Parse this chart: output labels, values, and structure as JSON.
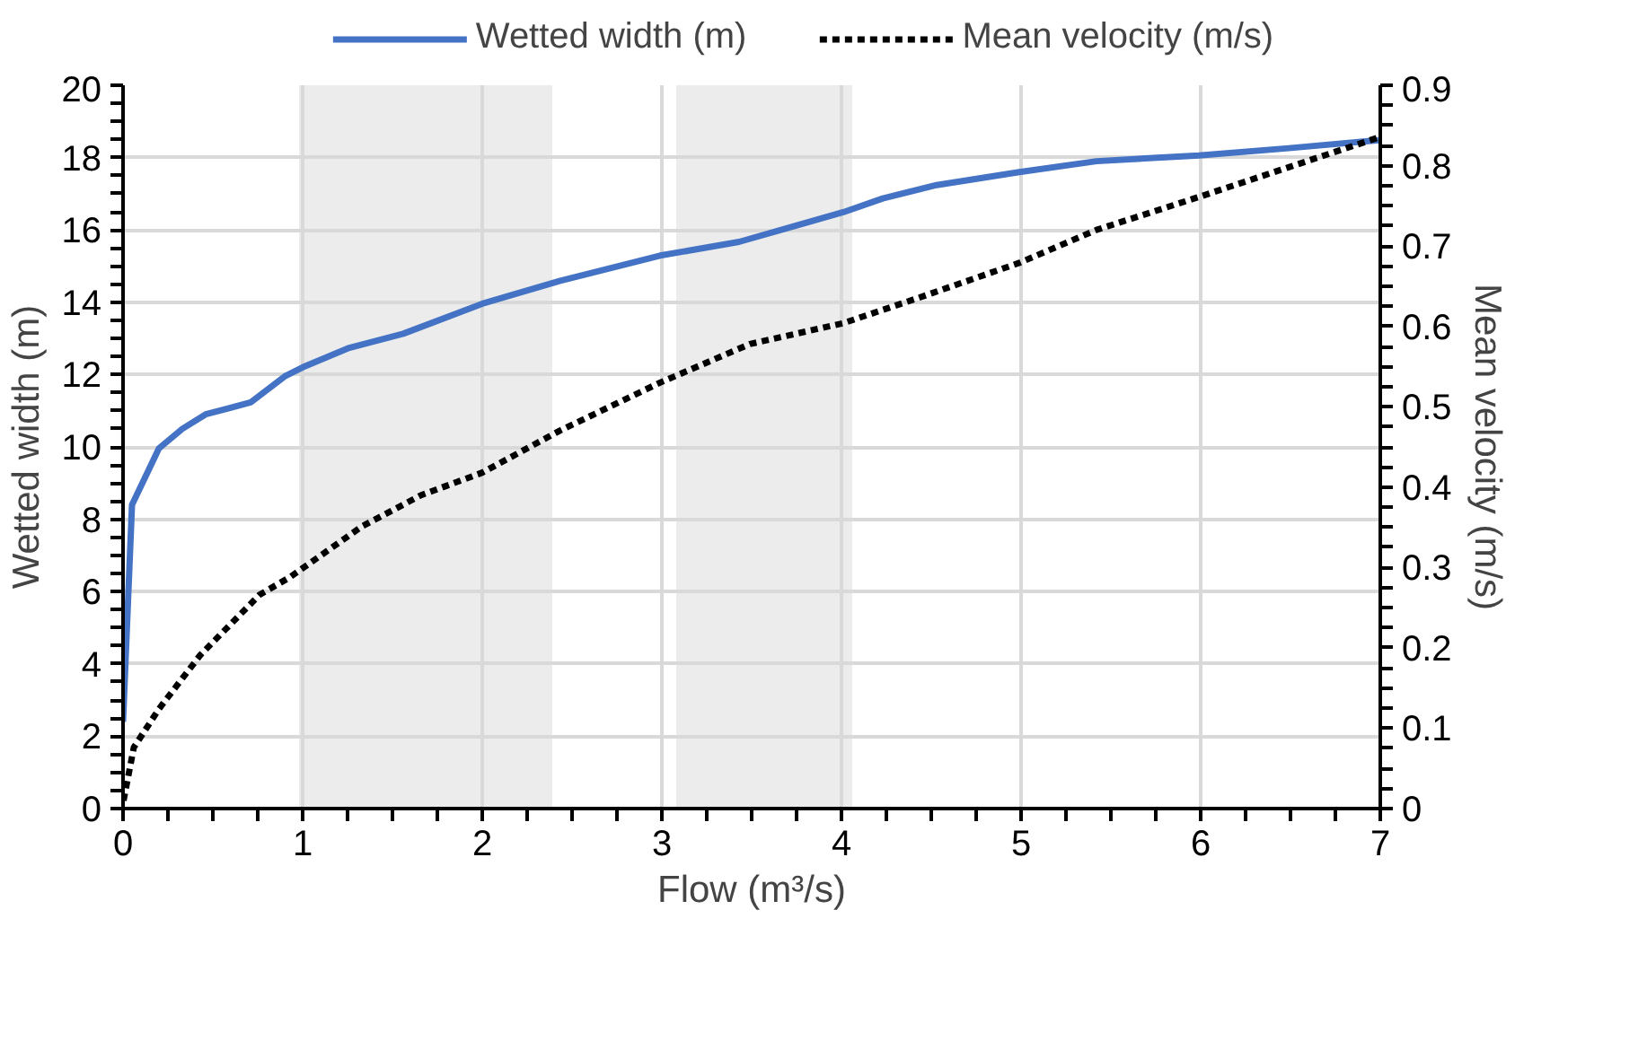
{
  "chart_data": {
    "type": "line",
    "xlabel": "Flow (m³/s)",
    "ylabel": "Wetted width (m)",
    "y2label": "Mean velocity (m/s)",
    "xlim": [
      0,
      7
    ],
    "xticks": [
      0,
      1,
      2,
      3,
      4,
      5,
      6,
      7
    ],
    "ylim": [
      0,
      20
    ],
    "yticks": [
      0,
      2,
      4,
      6,
      8,
      10,
      12,
      14,
      16,
      18,
      20
    ],
    "y2lim": [
      0,
      0.9
    ],
    "y2ticks": [
      0,
      0.1,
      0.2,
      0.3,
      0.4,
      0.5,
      0.6,
      0.7,
      0.8,
      0.9
    ],
    "grid": true,
    "legend": "top",
    "marker": "none",
    "bands": [
      {
        "axis": "x",
        "from": 0.98,
        "to": 2.39,
        "color": "#e7e7e7"
      },
      {
        "axis": "x",
        "from": 3.08,
        "to": 4.06,
        "color": "#e7e7e7"
      }
    ],
    "series": [
      {
        "name": "Wetted width (m)",
        "color": "#4472c4",
        "line_style": "solid",
        "x": [
          0,
          0.05,
          0.2,
          0.33,
          0.46,
          0.71,
          0.9,
          1.0,
          1.26,
          1.56,
          2.0,
          2.43,
          2.99,
          3.43,
          4.01,
          4.23,
          4.53,
          4.99,
          5.42,
          5.99,
          6.49,
          6.99
        ],
        "values": [
          2.4,
          8.4,
          9.96,
          10.5,
          10.9,
          11.23,
          11.95,
          12.2,
          12.74,
          13.13,
          13.96,
          14.59,
          15.29,
          15.67,
          16.49,
          16.87,
          17.24,
          17.6,
          17.9,
          18.06,
          18.26,
          18.48
        ]
      },
      {
        "name": "Mean velocity (m/s)",
        "color": "#000000",
        "line_style": "dashed",
        "axis": "y2",
        "x": [
          0.003,
          0.06,
          0.2,
          0.43,
          0.76,
          0.93,
          1.33,
          1.66,
          2.0,
          2.43,
          2.99,
          3.49,
          4.01,
          4.41,
          4.99,
          5.42,
          5.99,
          6.49,
          6.99
        ],
        "values": [
          0.01,
          0.076,
          0.124,
          0.191,
          0.266,
          0.288,
          0.351,
          0.39,
          0.418,
          0.47,
          0.53,
          0.578,
          0.604,
          0.634,
          0.679,
          0.72,
          0.761,
          0.798,
          0.835
        ]
      }
    ]
  }
}
